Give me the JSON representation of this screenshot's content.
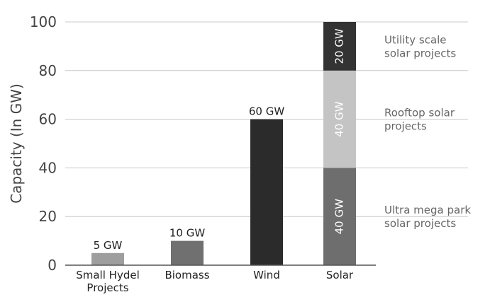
{
  "chart_data": {
    "type": "bar",
    "stacked": true,
    "categories": [
      "Small Hydel Projects",
      "Biomass",
      "Wind",
      "Solar"
    ],
    "category_lines": [
      [
        "Small Hydel",
        "Projects"
      ],
      [
        "Biomass"
      ],
      [
        "Wind"
      ],
      [
        "Solar"
      ]
    ],
    "ylabel": "Capacity (In GW)",
    "xlabel": "",
    "ylim": [
      0,
      100
    ],
    "yticks": [
      0,
      20,
      40,
      60,
      80,
      100
    ],
    "grid": true,
    "simple_bars": [
      {
        "category": "Small Hydel Projects",
        "value": 5,
        "label": "5 GW",
        "color": "#9e9e9e"
      },
      {
        "category": "Biomass",
        "value": 10,
        "label": "10 GW",
        "color": "#707070"
      },
      {
        "category": "Wind",
        "value": 60,
        "label": "60 GW",
        "color": "#2b2b2b"
      }
    ],
    "stacked_bar": {
      "category": "Solar",
      "segments": [
        {
          "value": 40,
          "label": "40 GW",
          "color": "#6e6e6e",
          "annotation": [
            "Ultra mega park",
            "solar projects"
          ]
        },
        {
          "value": 40,
          "label": "40 GW",
          "color": "#c4c4c4",
          "annotation": [
            "Rooftop solar",
            "projects"
          ]
        },
        {
          "value": 20,
          "label": "20 GW",
          "color": "#333333",
          "annotation": [
            "Utility scale",
            "solar projects"
          ]
        }
      ]
    }
  }
}
